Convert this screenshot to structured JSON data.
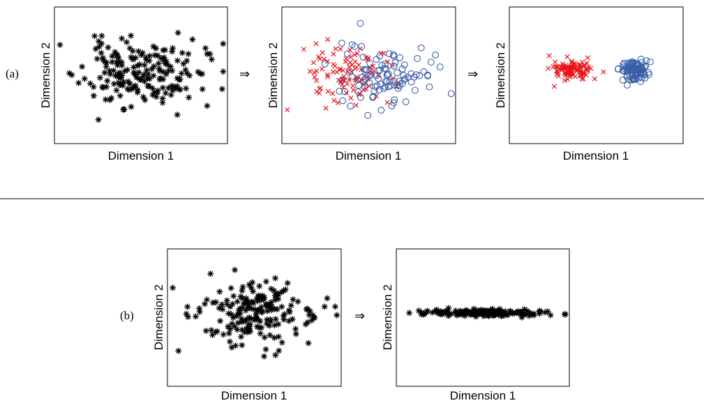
{
  "figure": {
    "row_a_label": "(a)",
    "row_b_label": "(b)",
    "arrow_glyph": "⇒",
    "colors": {
      "class1": "#e8141b",
      "class2": "#3a5ea8",
      "unlabeled": "#000000"
    }
  },
  "chart_data": [
    {
      "id": "a1",
      "type": "scatter",
      "xlabel": "Dimension 1",
      "ylabel": "Dimension 2",
      "xlim": [
        -3,
        3
      ],
      "ylim": [
        -3,
        3
      ],
      "grid": false,
      "series": [
        {
          "marker": "star",
          "color": "#000000",
          "gen": {
            "n": 190,
            "seed": 11,
            "cx": 0.0,
            "cy": 0.1,
            "sx": 1.05,
            "sy": 0.72
          }
        }
      ]
    },
    {
      "id": "a2",
      "type": "scatter",
      "xlabel": "Dimension 1",
      "ylabel": "Dimension 2",
      "xlim": [
        -3,
        3
      ],
      "ylim": [
        -3,
        3
      ],
      "grid": false,
      "series": [
        {
          "marker": "cross",
          "color": "#e8141b",
          "gen": {
            "n": 100,
            "seed": 23,
            "cx": -0.75,
            "cy": 0.1,
            "sx": 0.8,
            "sy": 0.72
          }
        },
        {
          "marker": "circle",
          "color": "#3a5ea8",
          "gen": {
            "n": 100,
            "seed": 37,
            "cx": 0.65,
            "cy": 0.05,
            "sx": 0.8,
            "sy": 0.72
          }
        }
      ]
    },
    {
      "id": "a3",
      "type": "scatter",
      "xlabel": "Dimension 1",
      "ylabel": "Dimension 2",
      "xlim": [
        -3,
        3
      ],
      "ylim": [
        -3,
        3
      ],
      "grid": false,
      "series": [
        {
          "marker": "cross",
          "color": "#e8141b",
          "gen": {
            "n": 100,
            "seed": 41,
            "cx": -0.8,
            "cy": 0.25,
            "sx": 0.32,
            "sy": 0.22
          }
        },
        {
          "marker": "circle",
          "color": "#3a5ea8",
          "gen": {
            "n": 100,
            "seed": 53,
            "cx": 1.3,
            "cy": 0.2,
            "sx": 0.25,
            "sy": 0.22
          }
        }
      ]
    },
    {
      "id": "b1",
      "type": "scatter",
      "xlabel": "Dimension 1",
      "ylabel": "Dimension 2",
      "xlim": [
        -3,
        3
      ],
      "ylim": [
        -3,
        3
      ],
      "grid": false,
      "series": [
        {
          "marker": "star",
          "color": "#000000",
          "gen": {
            "n": 190,
            "seed": 67,
            "cx": 0.0,
            "cy": 0.25,
            "sx": 1.05,
            "sy": 0.72
          }
        }
      ]
    },
    {
      "id": "b2",
      "type": "scatter",
      "xlabel": "Dimension 1",
      "ylabel": "Dimension 2",
      "xlim": [
        -3,
        3
      ],
      "ylim": [
        -3,
        3
      ],
      "grid": false,
      "series": [
        {
          "marker": "star",
          "color": "#000000",
          "gen": {
            "n": 170,
            "seed": 79,
            "cx": 0.1,
            "cy": 0.2,
            "sx": 1.05,
            "sy": 0.07
          }
        }
      ]
    }
  ]
}
